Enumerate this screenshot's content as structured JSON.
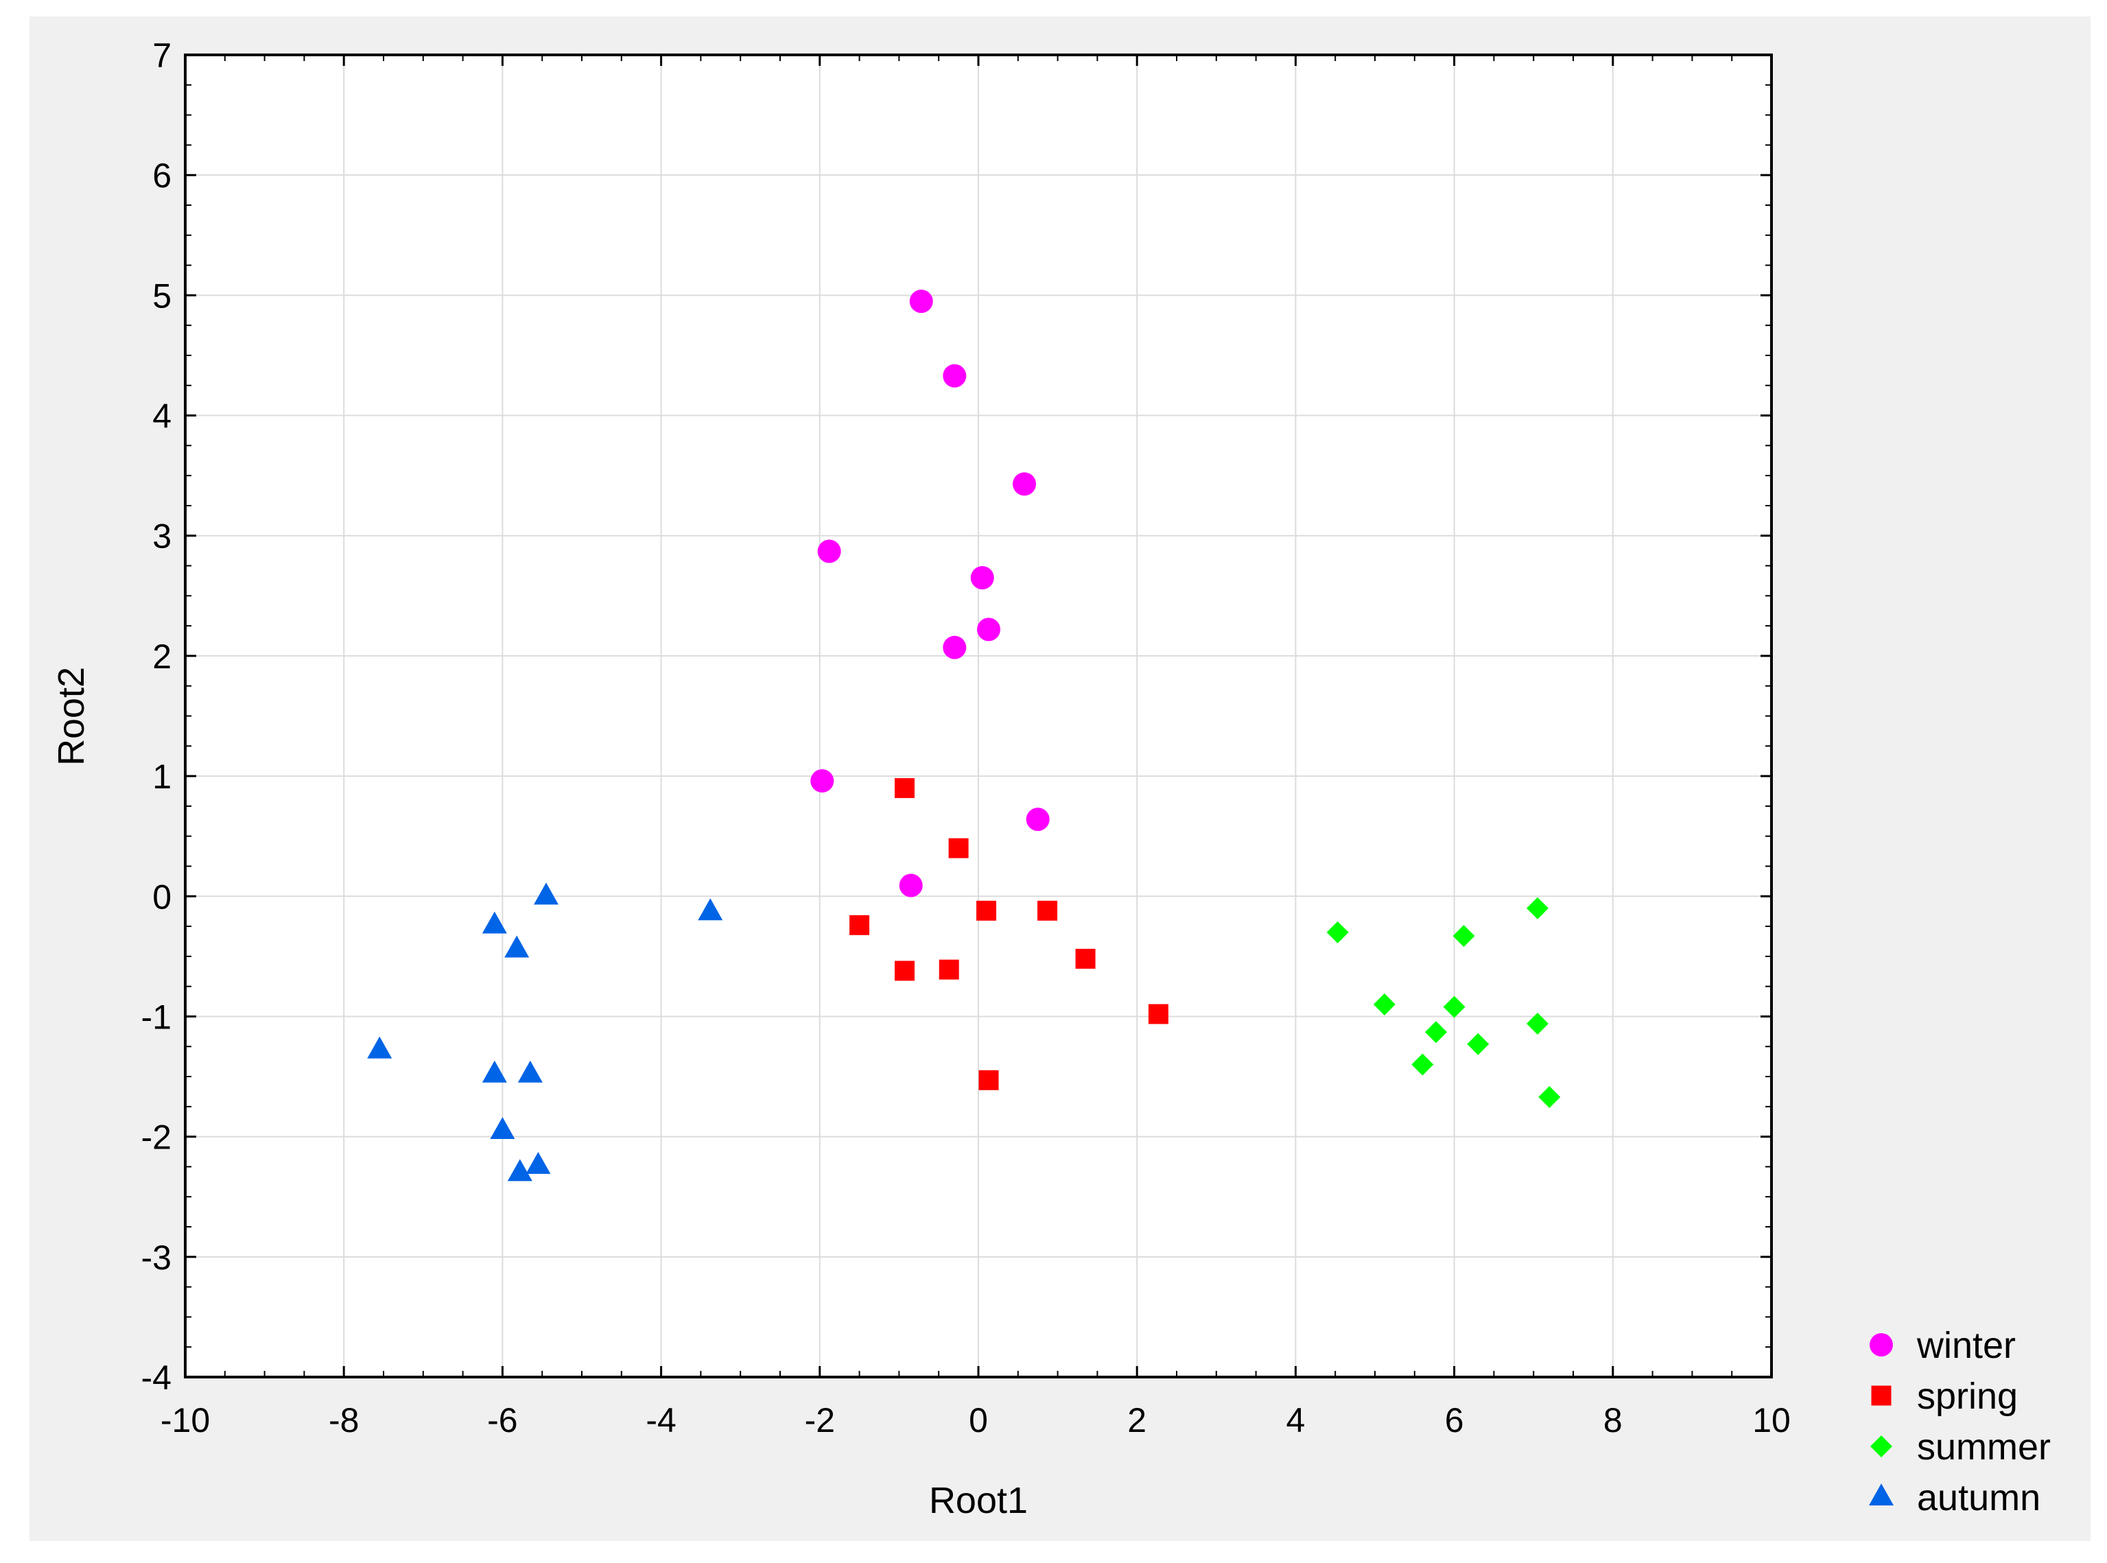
{
  "chart_data": {
    "type": "scatter",
    "title": "",
    "xlabel": "Root1",
    "ylabel": "Root2",
    "xlim": [
      -10,
      10
    ],
    "ylim": [
      -4,
      7
    ],
    "xticks": [
      -10,
      -8,
      -6,
      -4,
      -2,
      0,
      2,
      4,
      6,
      8,
      10
    ],
    "yticks": [
      7,
      6,
      5,
      4,
      3,
      2,
      1,
      0,
      -1,
      -2,
      -3,
      -4
    ],
    "grid": true,
    "legend_position": "bottom-right-outside",
    "series": [
      {
        "name": "winter",
        "marker": "circle",
        "color": "#ff00ff",
        "points": [
          [
            -0.72,
            4.95
          ],
          [
            -0.3,
            4.33
          ],
          [
            0.58,
            3.43
          ],
          [
            -1.88,
            2.87
          ],
          [
            0.05,
            2.65
          ],
          [
            0.13,
            2.22
          ],
          [
            -0.3,
            2.07
          ],
          [
            -1.97,
            0.96
          ],
          [
            0.75,
            0.64
          ],
          [
            -0.85,
            0.09
          ]
        ]
      },
      {
        "name": "spring",
        "marker": "square",
        "color": "#ff0000",
        "points": [
          [
            -0.93,
            0.9
          ],
          [
            -0.25,
            0.4
          ],
          [
            0.1,
            -0.12
          ],
          [
            0.87,
            -0.12
          ],
          [
            -1.5,
            -0.24
          ],
          [
            1.35,
            -0.52
          ],
          [
            -0.93,
            -0.62
          ],
          [
            -0.37,
            -0.61
          ],
          [
            2.27,
            -0.98
          ],
          [
            0.13,
            -1.53
          ]
        ]
      },
      {
        "name": "summer",
        "marker": "diamond",
        "color": "#00ff00",
        "points": [
          [
            4.53,
            -0.3
          ],
          [
            6.12,
            -0.33
          ],
          [
            7.05,
            -0.1
          ],
          [
            5.12,
            -0.9
          ],
          [
            6.0,
            -0.92
          ],
          [
            5.77,
            -1.13
          ],
          [
            6.3,
            -1.23
          ],
          [
            7.05,
            -1.06
          ],
          [
            5.6,
            -1.4
          ],
          [
            7.2,
            -1.67
          ]
        ]
      },
      {
        "name": "autumn",
        "marker": "triangle",
        "color": "#0064e6",
        "points": [
          [
            -5.45,
            0.0
          ],
          [
            -6.1,
            -0.24
          ],
          [
            -5.82,
            -0.44
          ],
          [
            -3.38,
            -0.13
          ],
          [
            -7.55,
            -1.28
          ],
          [
            -6.1,
            -1.48
          ],
          [
            -5.65,
            -1.48
          ],
          [
            -6.0,
            -1.95
          ],
          [
            -5.55,
            -2.24
          ],
          [
            -5.78,
            -2.3
          ]
        ]
      }
    ]
  }
}
